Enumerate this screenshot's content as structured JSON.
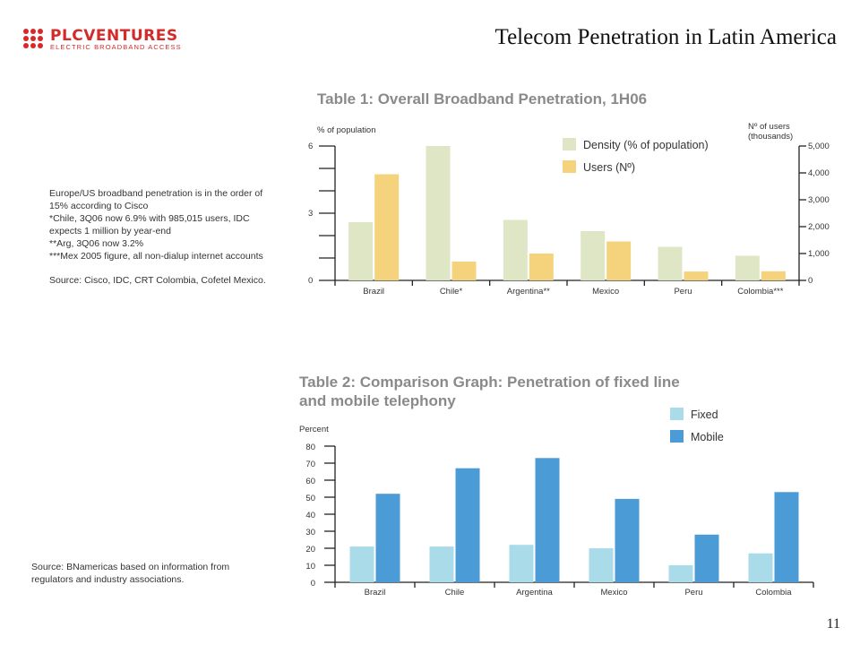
{
  "header": {
    "logo_text": "PLCVENTURES",
    "logo_tagline": "ELECTRIC BROADBAND ACCESS",
    "slide_title": "Telecom Penetration in Latin America",
    "page_number": "11"
  },
  "notes": {
    "lines": [
      "Europe/US broadband penetration is in the order of",
      "15% according to Cisco",
      "*Chile, 3Q06 now 6.9% with 985,015 users, IDC",
      "expects 1 million by year-end",
      "**Arg, 3Q06 now 3.2%",
      "***Mex 2005 figure, all non-dialup internet accounts"
    ],
    "source": "Source: Cisco, IDC, CRT Colombia, Cofetel Mexico."
  },
  "source2": {
    "lines": [
      "Source: BNamericas based on information from",
      "regulators and industry associations."
    ]
  },
  "colors": {
    "density": "#dfe6c6",
    "users": "#f5d27c",
    "fixed": "#a9dbe8",
    "mobile": "#4b9bd7",
    "title_gray": "#8a8a8a",
    "logo_red": "#d42a2a"
  },
  "chart_data": [
    {
      "type": "bar",
      "title": "Table 1:  Overall Broadband Penetration, 1H06",
      "ylabel": "% of population",
      "y2label": [
        "Nº of users",
        "(thousands)"
      ],
      "categories": [
        "Brazil",
        "Chile*",
        "Argentina**",
        "Mexico",
        "Peru",
        "Colombia***"
      ],
      "ylim": [
        0,
        6
      ],
      "yticks": [
        "0",
        "3",
        "6"
      ],
      "y2lim": [
        0,
        5000
      ],
      "y2ticks": [
        "0",
        "1,000",
        "2,000",
        "3,000",
        "4,000",
        "5,000"
      ],
      "series": [
        {
          "name": "Density (% of population)",
          "axis": "left",
          "values": [
            2.6,
            6.0,
            2.7,
            2.2,
            1.5,
            1.1
          ]
        },
        {
          "name": "Users (Nº)",
          "axis": "right",
          "values": [
            3950,
            700,
            1000,
            1450,
            330,
            340
          ]
        }
      ],
      "legend_position": "top-right",
      "grid": false
    },
    {
      "type": "bar",
      "title": [
        "Table 2: Comparison Graph: Penetration of fixed line",
        "and mobile telephony"
      ],
      "ylabel": "Percent",
      "categories": [
        "Brazil",
        "Chile",
        "Argentina",
        "Mexico",
        "Peru",
        "Colombia"
      ],
      "ylim": [
        0,
        80
      ],
      "yticks": [
        "0",
        "10",
        "20",
        "30",
        "40",
        "50",
        "60",
        "70",
        "80"
      ],
      "series": [
        {
          "name": "Fixed",
          "values": [
            21,
            21,
            22,
            20,
            10,
            17
          ]
        },
        {
          "name": "Mobile",
          "values": [
            52,
            67,
            73,
            49,
            28,
            53
          ]
        }
      ],
      "legend_position": "top-right",
      "grid": false
    }
  ]
}
